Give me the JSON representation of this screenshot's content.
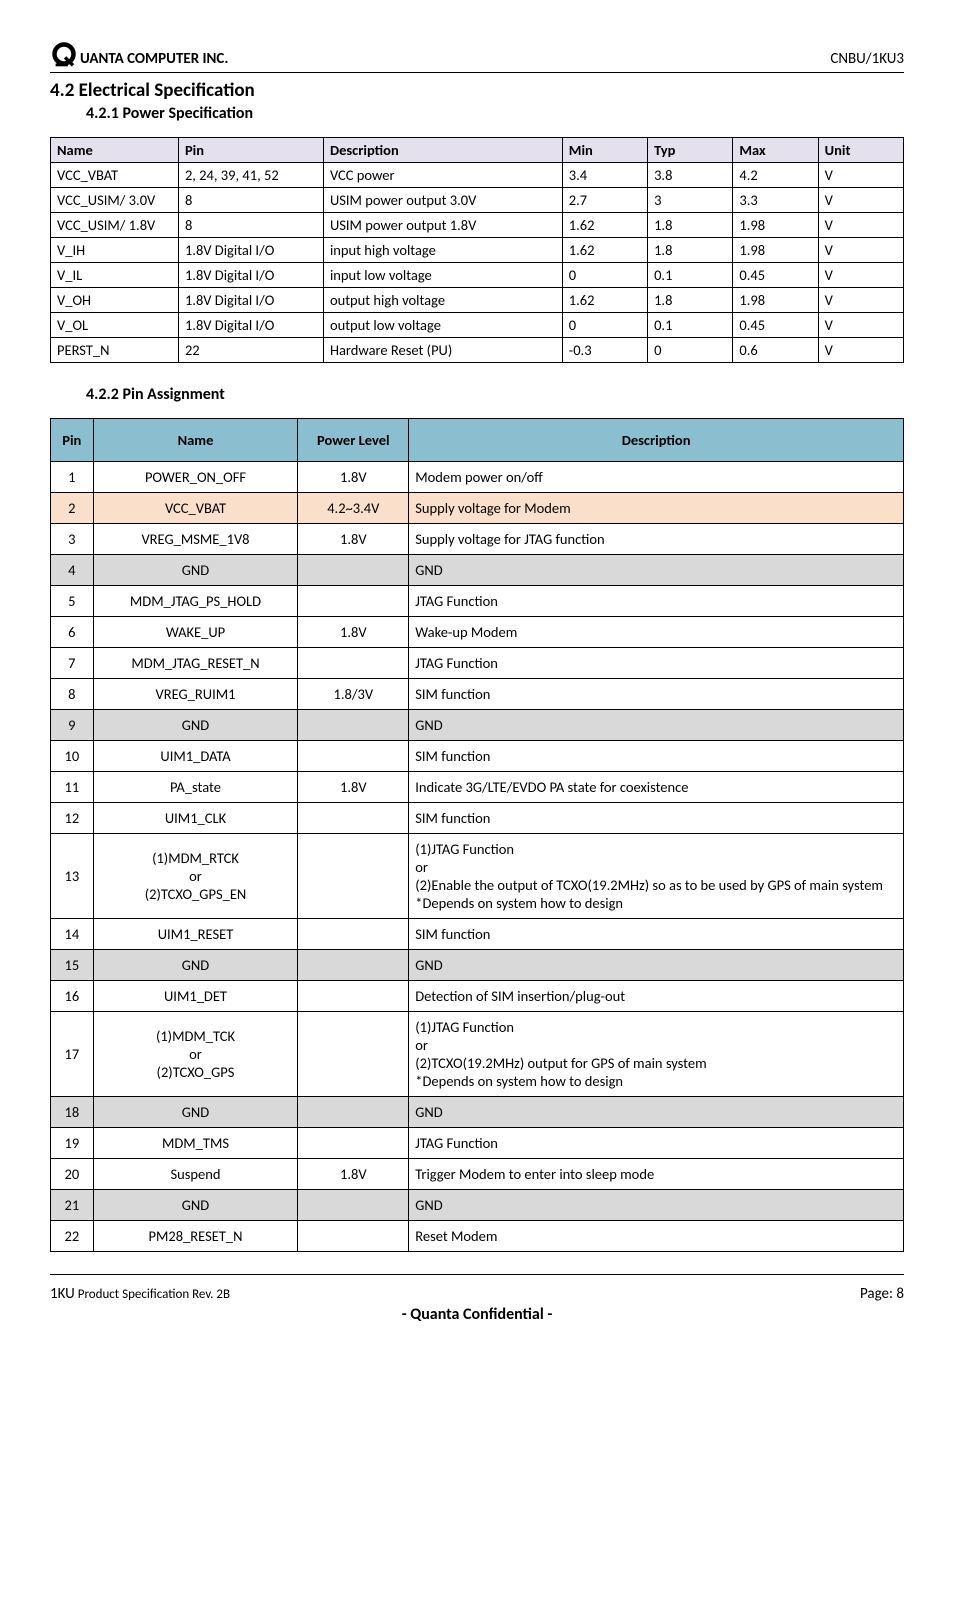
{
  "header": {
    "company": "UANTA COMPUTER INC.",
    "doc_code": "CNBU/1KU3"
  },
  "section": {
    "heading": "4.2 Electrical Specification",
    "sub1": "4.2.1 Power Specification",
    "sub2": "4.2.2 Pin Assignment"
  },
  "power_table": {
    "columns": [
      "Name",
      "Pin",
      "Description",
      "Min",
      "Typ",
      "Max",
      "Unit"
    ],
    "col_widths": [
      "15%",
      "17%",
      "28%",
      "10%",
      "10%",
      "10%",
      "10%"
    ],
    "header_bg": "#e4e0ec",
    "rows": [
      [
        "VCC_VBAT",
        "2, 24, 39, 41, 52",
        "VCC power",
        "3.4",
        "3.8",
        "4.2",
        "V"
      ],
      [
        "VCC_USIM/ 3.0V",
        "8",
        "USIM power output 3.0V",
        "2.7",
        "3",
        "3.3",
        "V"
      ],
      [
        "VCC_USIM/ 1.8V",
        "8",
        "USIM power output 1.8V",
        "1.62",
        "1.8",
        "1.98",
        "V"
      ],
      [
        "V_IH",
        "1.8V Digital I/O",
        "input high voltage",
        "1.62",
        "1.8",
        "1.98",
        "V"
      ],
      [
        "V_IL",
        "1.8V Digital I/O",
        "input low voltage",
        "0",
        "0.1",
        "0.45",
        "V"
      ],
      [
        "V_OH",
        "1.8V Digital I/O",
        "output high voltage",
        "1.62",
        "1.8",
        "1.98",
        "V"
      ],
      [
        "V_OL",
        "1.8V Digital I/O",
        "output low voltage",
        "0",
        "0.1",
        "0.45",
        "V"
      ],
      [
        "PERST_N",
        "22",
        "Hardware Reset (PU)",
        "-0.3",
        "0",
        "0.6",
        "V"
      ]
    ]
  },
  "pin_table": {
    "columns": [
      "Pin",
      "Name",
      "Power Level",
      "Description"
    ],
    "col_widths": [
      "5%",
      "24%",
      "13%",
      "58%"
    ],
    "header_bg": "#8bbecf",
    "row_gnd_bg": "#d9d9d9",
    "row_vbat_bg": "#fadfca",
    "rows": [
      {
        "pin": "1",
        "name": "POWER_ON_OFF",
        "power": "1.8V",
        "desc": "Modem power on/off",
        "cls": ""
      },
      {
        "pin": "2",
        "name": "VCC_VBAT",
        "power": "4.2~3.4V",
        "desc": "Supply voltage for Modem",
        "cls": "row-vbat"
      },
      {
        "pin": "3",
        "name": "VREG_MSME_1V8",
        "power": "1.8V",
        "desc": "Supply voltage for JTAG function",
        "cls": ""
      },
      {
        "pin": "4",
        "name": "GND",
        "power": "",
        "desc": "GND",
        "cls": "row-gnd"
      },
      {
        "pin": "5",
        "name": "MDM_JTAG_PS_HOLD",
        "power": "",
        "desc": "JTAG Function",
        "cls": ""
      },
      {
        "pin": "6",
        "name": "WAKE_UP",
        "power": "1.8V",
        "desc": "Wake-up Modem",
        "cls": ""
      },
      {
        "pin": "7",
        "name": "MDM_JTAG_RESET_N",
        "power": "",
        "desc": "JTAG Function",
        "cls": ""
      },
      {
        "pin": "8",
        "name": "VREG_RUIM1",
        "power": "1.8/3V",
        "desc": "SIM function",
        "cls": ""
      },
      {
        "pin": "9",
        "name": "GND",
        "power": "",
        "desc": "GND",
        "cls": "row-gnd"
      },
      {
        "pin": "10",
        "name": "UIM1_DATA",
        "power": "",
        "desc": "SIM function",
        "cls": ""
      },
      {
        "pin": "11",
        "name": "PA_state",
        "power": "1.8V",
        "desc": "Indicate 3G/LTE/EVDO PA state for coexistence",
        "cls": ""
      },
      {
        "pin": "12",
        "name": "UIM1_CLK",
        "power": "",
        "desc": "SIM function",
        "cls": ""
      },
      {
        "pin": "13",
        "name": "(1)MDM_RTCK\nor\n(2)TCXO_GPS_EN",
        "power": "",
        "desc": "(1)JTAG Function\nor\n(2)Enable the output of TCXO(19.2MHz) so as to be used by GPS of main system\n*Depends on system how to design",
        "cls": ""
      },
      {
        "pin": "14",
        "name": "UIM1_RESET",
        "power": "",
        "desc": "SIM function",
        "cls": ""
      },
      {
        "pin": "15",
        "name": "GND",
        "power": "",
        "desc": "GND",
        "cls": "row-gnd"
      },
      {
        "pin": "16",
        "name": "UIM1_DET",
        "power": "",
        "desc": "Detection of SIM insertion/plug-out",
        "cls": ""
      },
      {
        "pin": "17",
        "name": "(1)MDM_TCK\nor\n(2)TCXO_GPS",
        "power": "",
        "desc": "(1)JTAG Function\nor\n(2)TCXO(19.2MHz) output for GPS of main system\n*Depends on system how to design",
        "cls": ""
      },
      {
        "pin": "18",
        "name": "GND",
        "power": "",
        "desc": "GND",
        "cls": "row-gnd"
      },
      {
        "pin": "19",
        "name": "MDM_TMS",
        "power": "",
        "desc": "JTAG Function",
        "cls": ""
      },
      {
        "pin": "20",
        "name": "Suspend",
        "power": "1.8V",
        "desc": "Trigger Modem to enter into sleep mode",
        "cls": ""
      },
      {
        "pin": "21",
        "name": "GND",
        "power": "",
        "desc": "GND",
        "cls": "row-gnd"
      },
      {
        "pin": "22",
        "name": "PM28_RESET_N",
        "power": "",
        "desc": "Reset Modem",
        "cls": ""
      }
    ]
  },
  "footer": {
    "product": "1KU",
    "spec_label": " Product Specification Rev. 2B",
    "page_label": "Page: 8",
    "confidential": "- Quanta Confidential -"
  }
}
